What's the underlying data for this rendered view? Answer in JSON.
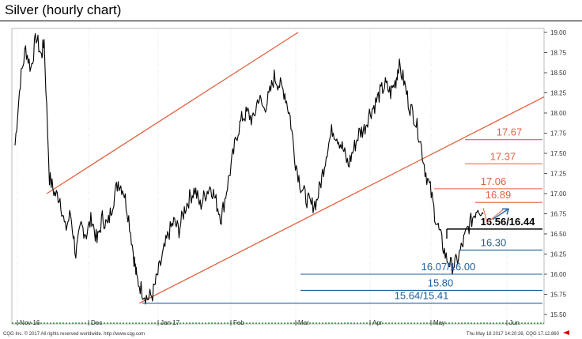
{
  "title": "Silver (hourly chart)",
  "footer_left": "CQG Inc. © 2017 All rights reserved worldwide. http://www.cqg.com",
  "footer_right": "Thu May 18 2017 14:20:26, CQG 17.12.860",
  "colors": {
    "resistance": "#e0623f",
    "support": "#1f5f9e",
    "pivot": "#000000",
    "price": "#000000",
    "channel": "#e0623f",
    "grid_minor": "#bcd7e6",
    "arrow": "#1f5f9e"
  },
  "chart_data": {
    "type": "line",
    "title": "Silver (hourly chart)",
    "xlabel": "",
    "ylabel": "",
    "ylim": [
      15.35,
      19.05
    ],
    "y_ticks": [
      "19.00",
      "18.75",
      "18.50",
      "18.25",
      "18.00",
      "17.75",
      "17.50",
      "17.25",
      "17.00",
      "16.75",
      "16.50",
      "16.25",
      "16.00",
      "15.75",
      "15.50"
    ],
    "x_ticks": [
      "Nov 16",
      "Dec",
      "Jan 17",
      "Feb",
      "Mar",
      "Apr",
      "May",
      "Jun"
    ],
    "grid": true,
    "series": [
      {
        "values": [
          [
            0,
            17.6
          ],
          [
            2,
            18.4
          ],
          [
            4,
            18.8
          ],
          [
            6,
            18.55
          ],
          [
            8,
            18.95
          ],
          [
            10,
            18.7
          ],
          [
            11,
            18.9
          ],
          [
            13,
            17.2
          ],
          [
            15,
            17.0
          ],
          [
            17,
            16.95
          ],
          [
            19,
            16.55
          ],
          [
            21,
            16.75
          ],
          [
            23,
            16.25
          ],
          [
            25,
            16.6
          ],
          [
            27,
            16.5
          ],
          [
            29,
            16.7
          ],
          [
            31,
            16.4
          ],
          [
            33,
            16.7
          ],
          [
            35,
            16.6
          ],
          [
            37,
            16.9
          ],
          [
            39,
            17.15
          ],
          [
            41,
            17.05
          ],
          [
            43,
            16.7
          ],
          [
            45,
            16.2
          ],
          [
            46,
            15.95
          ],
          [
            48,
            15.8
          ],
          [
            50,
            15.7
          ],
          [
            52,
            15.75
          ],
          [
            54,
            16.0
          ],
          [
            56,
            16.25
          ],
          [
            58,
            16.5
          ],
          [
            60,
            16.65
          ],
          [
            62,
            16.55
          ],
          [
            64,
            16.8
          ],
          [
            66,
            16.95
          ],
          [
            68,
            17.05
          ],
          [
            70,
            16.85
          ],
          [
            72,
            17.0
          ],
          [
            74,
            17.1
          ],
          [
            76,
            16.9
          ],
          [
            78,
            16.7
          ],
          [
            80,
            17.05
          ],
          [
            82,
            17.4
          ],
          [
            84,
            17.75
          ],
          [
            86,
            17.95
          ],
          [
            88,
            18.0
          ],
          [
            90,
            17.9
          ],
          [
            92,
            18.2
          ],
          [
            94,
            18.05
          ],
          [
            96,
            18.2
          ],
          [
            98,
            18.45
          ],
          [
            100,
            18.35
          ],
          [
            102,
            18.25
          ],
          [
            104,
            17.95
          ],
          [
            106,
            17.4
          ],
          [
            108,
            17.1
          ],
          [
            110,
            16.95
          ],
          [
            112,
            16.85
          ],
          [
            114,
            16.9
          ],
          [
            116,
            17.2
          ],
          [
            118,
            17.55
          ],
          [
            120,
            17.8
          ],
          [
            122,
            17.7
          ],
          [
            124,
            17.55
          ],
          [
            126,
            17.35
          ],
          [
            128,
            17.55
          ],
          [
            130,
            17.75
          ],
          [
            132,
            17.8
          ],
          [
            134,
            18.0
          ],
          [
            136,
            18.1
          ],
          [
            138,
            18.25
          ],
          [
            140,
            18.35
          ],
          [
            142,
            18.25
          ],
          [
            144,
            18.4
          ],
          [
            145,
            18.6
          ],
          [
            147,
            18.4
          ],
          [
            149,
            18.1
          ],
          [
            151,
            17.95
          ],
          [
            153,
            17.7
          ],
          [
            155,
            17.3
          ],
          [
            157,
            17.05
          ],
          [
            159,
            16.7
          ],
          [
            161,
            16.45
          ],
          [
            163,
            16.2
          ],
          [
            165,
            16.1
          ],
          [
            167,
            16.15
          ],
          [
            169,
            16.35
          ],
          [
            171,
            16.55
          ],
          [
            173,
            16.7
          ],
          [
            175,
            16.85
          ],
          [
            177,
            16.75
          ]
        ]
      }
    ],
    "x_range": [
      0,
      200
    ],
    "channel_upper": [
      [
        12,
        17.0
      ],
      [
        107,
        19.0
      ]
    ],
    "channel_lower": [
      [
        47,
        15.64
      ],
      [
        200,
        18.2
      ]
    ],
    "levels": [
      {
        "label": "17.67",
        "value": 17.67,
        "kind": "resistance"
      },
      {
        "label": "17.37",
        "value": 17.37,
        "kind": "resistance"
      },
      {
        "label": "17.06",
        "value": 17.06,
        "kind": "resistance"
      },
      {
        "label": "16.89",
        "value": 16.89,
        "kind": "resistance"
      },
      {
        "label": "16.56/16.44",
        "value": 16.56,
        "kind": "pivot"
      },
      {
        "label": "16.30",
        "value": 16.3,
        "kind": "support"
      },
      {
        "label": "16.07/16.00",
        "value": 16.0,
        "kind": "support"
      },
      {
        "label": "15.80",
        "value": 15.8,
        "kind": "support"
      },
      {
        "label": "15.64/15.41",
        "value": 15.64,
        "kind": "support"
      }
    ]
  }
}
